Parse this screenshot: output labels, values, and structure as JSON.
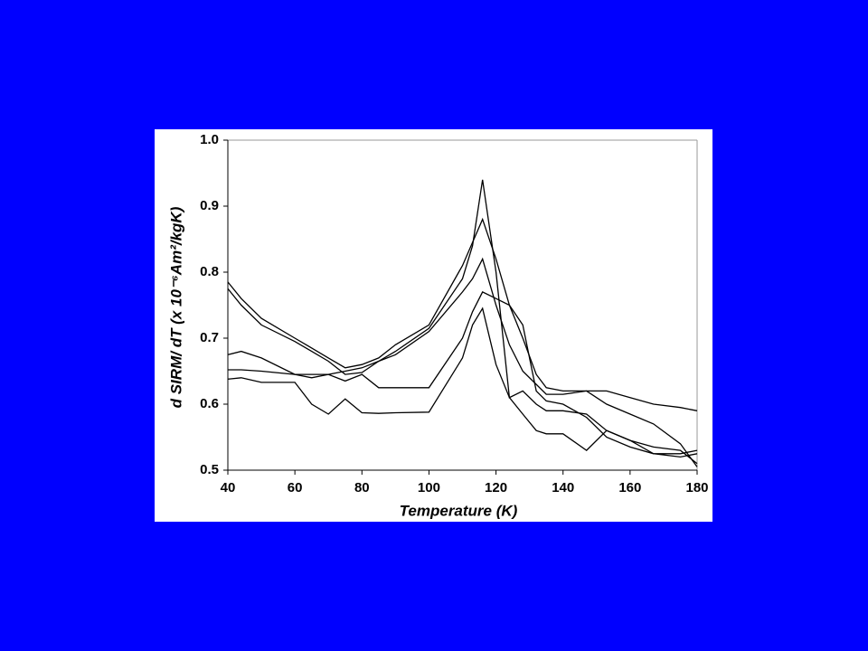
{
  "chart_data": {
    "type": "line",
    "x_label": "Temperature (K)",
    "y_label": "d SIRM/ dT (x 10⁻⁶Am²/kgK)",
    "x": [
      40,
      44,
      50,
      60,
      65,
      70,
      75,
      80,
      85,
      90,
      100,
      110,
      113,
      116,
      120,
      124,
      128,
      132,
      135,
      140,
      147,
      153,
      160,
      167,
      175,
      180
    ],
    "series": [
      {
        "color": "#000000",
        "values": [
          0.775,
          0.75,
          0.72,
          0.695,
          0.68,
          0.665,
          0.645,
          0.648,
          0.665,
          0.68,
          0.715,
          0.79,
          0.84,
          0.94,
          0.8,
          0.61,
          0.62,
          0.6,
          0.59,
          0.59,
          0.585,
          0.56,
          0.545,
          0.535,
          0.53,
          0.51
        ]
      },
      {
        "color": "#000000",
        "values": [
          0.785,
          0.76,
          0.73,
          0.7,
          0.685,
          0.67,
          0.655,
          0.66,
          0.67,
          0.69,
          0.72,
          0.81,
          0.845,
          0.88,
          0.82,
          0.75,
          0.7,
          0.645,
          0.625,
          0.62,
          0.62,
          0.62,
          0.61,
          0.6,
          0.595,
          0.59
        ]
      },
      {
        "color": "#000000",
        "values": [
          0.675,
          0.68,
          0.67,
          0.645,
          0.64,
          0.645,
          0.65,
          0.655,
          0.665,
          0.675,
          0.71,
          0.77,
          0.79,
          0.82,
          0.75,
          0.69,
          0.65,
          0.63,
          0.615,
          0.615,
          0.62,
          0.6,
          0.585,
          0.57,
          0.54,
          0.505
        ]
      },
      {
        "color": "#000000",
        "values": [
          0.652,
          0.652,
          0.65,
          0.645,
          0.645,
          0.645,
          0.635,
          0.645,
          0.625,
          0.625,
          0.625,
          0.7,
          0.74,
          0.77,
          0.76,
          0.75,
          0.72,
          0.62,
          0.605,
          0.6,
          0.58,
          0.55,
          0.535,
          0.525,
          0.525,
          0.53
        ]
      },
      {
        "color": "#000000",
        "values": [
          0.638,
          0.64,
          0.633,
          0.633,
          0.6,
          0.585,
          0.608,
          0.587,
          0.586,
          0.587,
          0.588,
          0.67,
          0.72,
          0.745,
          0.66,
          0.61,
          0.585,
          0.56,
          0.555,
          0.555,
          0.53,
          0.56,
          0.545,
          0.525,
          0.52,
          0.525
        ]
      }
    ],
    "xlim": [
      40,
      180
    ],
    "xticks": [
      40,
      60,
      80,
      100,
      120,
      140,
      160,
      180
    ],
    "ylim": [
      0.5,
      1.0
    ],
    "yticks": [
      0.5,
      0.6,
      0.7,
      0.8,
      0.9,
      {
        "value": 1.0,
        "label": "1.0"
      }
    ],
    "grid": false
  }
}
